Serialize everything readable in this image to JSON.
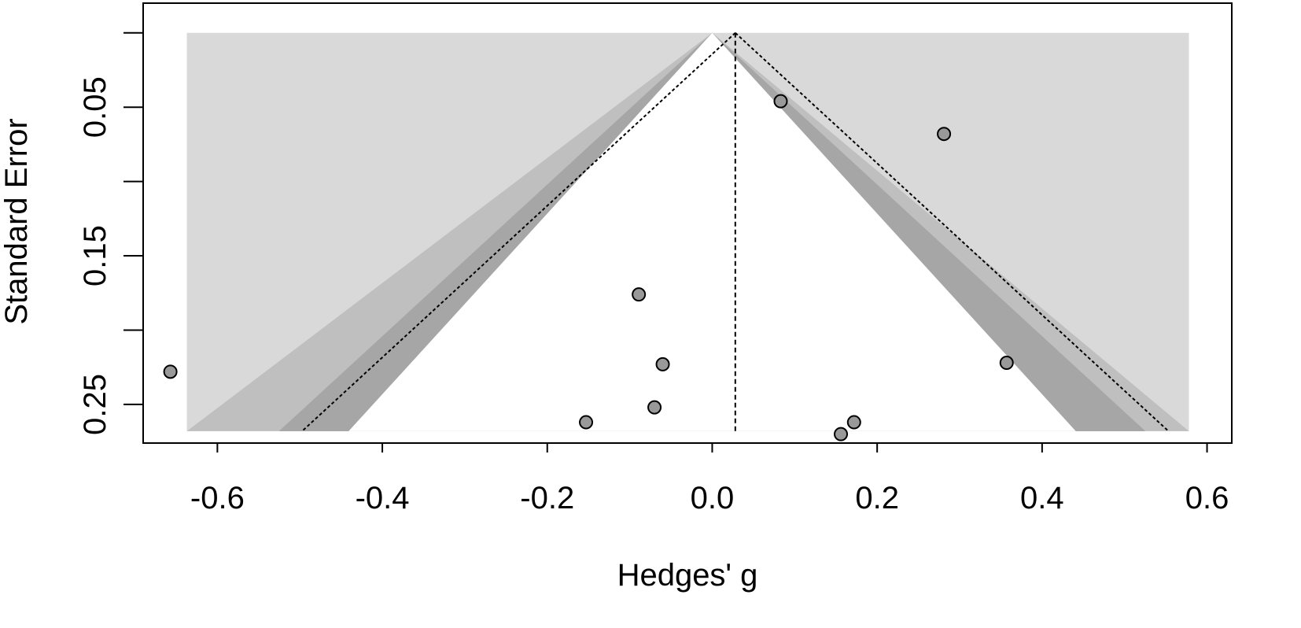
{
  "chart_data": {
    "type": "scatter",
    "subtype": "contour-enhanced funnel plot",
    "xlabel": "Hedges' g",
    "ylabel": "Standard Error",
    "xlim": [
      -0.69,
      0.63
    ],
    "ylim": [
      0.276,
      -0.02
    ],
    "y_reversed": true,
    "x_ticks": [
      -0.6,
      -0.4,
      -0.2,
      0.0,
      0.2,
      0.4,
      0.6
    ],
    "x_tick_labels": [
      "-0.6",
      "-0.4",
      "-0.2",
      "0.0",
      "0.2",
      "0.4",
      "0.6"
    ],
    "y_ticks": [
      0.0,
      0.05,
      0.1,
      0.15,
      0.2,
      0.25
    ],
    "y_tick_labels": [
      "",
      "0.05",
      "",
      "0.15",
      "",
      "0.25"
    ],
    "grid": false,
    "legend": "none",
    "funnel": {
      "null_center": 0.0,
      "se_max": 0.268,
      "contour_z": [
        1.645,
        1.96,
        2.576
      ],
      "contour_colors": [
        "#ffffff",
        "#a6a6a6",
        "#bfbfbf",
        "#d9d9d9"
      ],
      "estimate": 0.028,
      "estimate_line_z": 1.96
    },
    "points": [
      {
        "x": 0.083,
        "y": 0.046
      },
      {
        "x": 0.281,
        "y": 0.068
      },
      {
        "x": -0.089,
        "y": 0.176
      },
      {
        "x": -0.06,
        "y": 0.223
      },
      {
        "x": 0.357,
        "y": 0.222
      },
      {
        "x": -0.657,
        "y": 0.228
      },
      {
        "x": -0.07,
        "y": 0.252
      },
      {
        "x": -0.153,
        "y": 0.262
      },
      {
        "x": 0.172,
        "y": 0.262
      },
      {
        "x": 0.156,
        "y": 0.27
      }
    ],
    "point_color": "#999999"
  }
}
